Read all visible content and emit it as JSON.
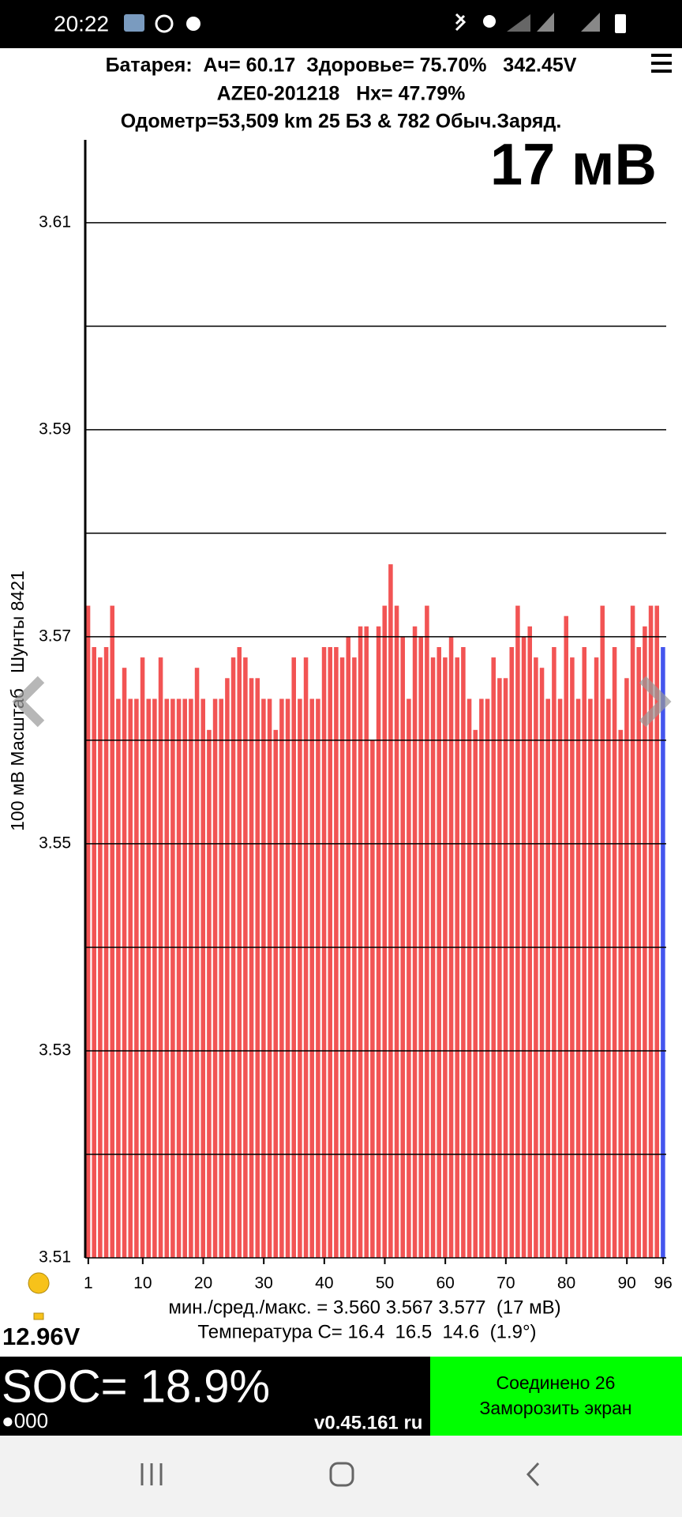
{
  "status_bar": {
    "time": "20:22"
  },
  "header": {
    "line1": "Батарея:  Ач= 60.17  Здоровье= 75.70%   342.45V",
    "line2": "AZE0-201218   Hx= 47.79%",
    "line3": "Одометр=53,509 km 25 БЗ & 782 Обыч.Заряд."
  },
  "chart_data": {
    "type": "bar",
    "annotation": "17 мВ",
    "y_label": "100 мВ Масштаб   Шунты 8421",
    "categories": [
      1,
      null,
      null,
      null,
      null,
      null,
      null,
      null,
      null,
      10,
      null,
      null,
      null,
      null,
      null,
      null,
      null,
      null,
      null,
      20,
      null,
      null,
      null,
      null,
      null,
      null,
      null,
      null,
      null,
      30,
      null,
      null,
      null,
      null,
      null,
      null,
      null,
      null,
      null,
      40,
      null,
      null,
      null,
      null,
      null,
      null,
      null,
      null,
      null,
      50,
      null,
      null,
      null,
      null,
      null,
      null,
      null,
      null,
      null,
      60,
      null,
      null,
      null,
      null,
      null,
      null,
      null,
      null,
      null,
      70,
      null,
      null,
      null,
      null,
      null,
      null,
      null,
      null,
      null,
      80,
      null,
      null,
      null,
      null,
      null,
      null,
      null,
      null,
      null,
      90,
      null,
      null,
      null,
      null,
      null,
      96
    ],
    "values": [
      3.573,
      3.569,
      3.568,
      3.569,
      3.573,
      3.564,
      3.567,
      3.564,
      3.564,
      3.568,
      3.564,
      3.564,
      3.568,
      3.564,
      3.564,
      3.564,
      3.564,
      3.564,
      3.567,
      3.564,
      3.561,
      3.564,
      3.564,
      3.566,
      3.568,
      3.569,
      3.568,
      3.566,
      3.566,
      3.564,
      3.564,
      3.561,
      3.564,
      3.564,
      3.568,
      3.564,
      3.568,
      3.564,
      3.564,
      3.569,
      3.569,
      3.569,
      3.568,
      3.57,
      3.568,
      3.571,
      3.571,
      3.56,
      3.571,
      3.573,
      3.577,
      3.573,
      3.57,
      3.564,
      3.571,
      3.57,
      3.573,
      3.568,
      3.569,
      3.568,
      3.57,
      3.568,
      3.569,
      3.564,
      3.561,
      3.564,
      3.564,
      3.568,
      3.566,
      3.566,
      3.569,
      3.573,
      3.57,
      3.571,
      3.568,
      3.567,
      3.564,
      3.569,
      3.564,
      3.572,
      3.568,
      3.564,
      3.569,
      3.564,
      3.568,
      3.573,
      3.564,
      3.569,
      3.561,
      3.566,
      3.573,
      3.569,
      3.571,
      3.573,
      3.573,
      3.569
    ],
    "color": "#f25454",
    "last_bar_color": "#4455ee",
    "ylim": [
      3.51,
      3.618
    ],
    "yticks": [
      3.51,
      3.53,
      3.55,
      3.57,
      3.59,
      3.61
    ],
    "ygrid": [
      3.52,
      3.54,
      3.56,
      3.58,
      3.6
    ],
    "grid": true
  },
  "stats": {
    "line1": "мин./сред./макс. = 3.560 3.567 3.577  (17 мВ)",
    "line2": "Температура C= 16.4  16.5  14.6  (1.9°)",
    "aux_voltage": "12.96V"
  },
  "footer": {
    "soc": "SOC= 18.9%",
    "indicator": "●000",
    "version": "v0.45.161 ru",
    "status_line1": "Соединено 26",
    "status_line2": "Заморозить экран"
  }
}
